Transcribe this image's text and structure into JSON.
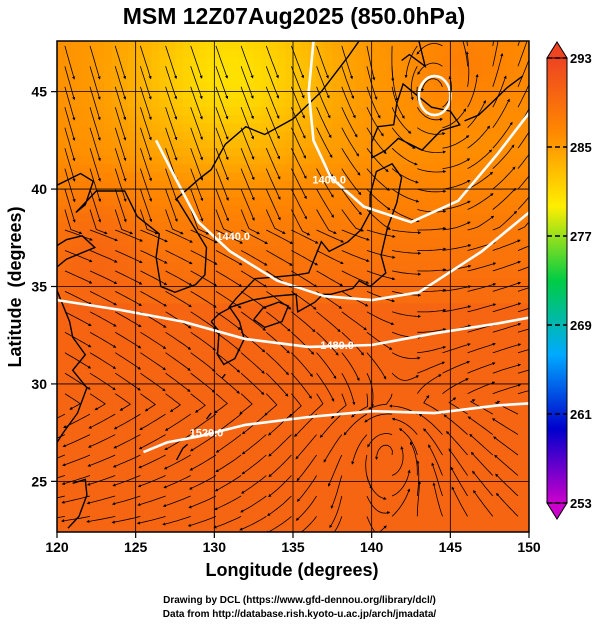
{
  "chart_data": {
    "type": "heatmap",
    "title": "MSM 12Z07Aug2025 (850.0hPa)",
    "xlabel": "Longitude (degrees)",
    "ylabel": "Latitude  (degrees)",
    "xlim": [
      120,
      150
    ],
    "ylim": [
      22.4,
      47.6
    ],
    "x_ticks": [
      120,
      125,
      130,
      135,
      140,
      145,
      150
    ],
    "y_ticks": [
      25,
      30,
      35,
      40,
      45
    ],
    "colorbar": {
      "min": 253,
      "max": 293,
      "tick_values": [
        253,
        261,
        269,
        277,
        285,
        293
      ],
      "tick_labels": [
        "253",
        "261",
        "269",
        "277",
        "285",
        "293"
      ],
      "colors": [
        "#cc00cc",
        "#0000cc",
        "#00aaff",
        "#00cc44",
        "#ffee00",
        "#ff8800",
        "#ee4422"
      ]
    },
    "contours": [
      {
        "label": "1480.0",
        "label_lon": 137.8,
        "label_lat": 32.0,
        "points": [
          [
            120,
            34.3
          ],
          [
            124,
            33.8
          ],
          [
            128,
            33.2
          ],
          [
            132,
            32.3
          ],
          [
            136,
            31.9
          ],
          [
            140,
            32.0
          ],
          [
            144,
            32.6
          ],
          [
            148,
            33.1
          ],
          [
            150,
            33.4
          ]
        ]
      },
      {
        "label": "1520.0",
        "label_lon": 129.5,
        "label_lat": 27.5,
        "points": [
          [
            125.5,
            26.5
          ],
          [
            127,
            27.0
          ],
          [
            129,
            27.3
          ],
          [
            132,
            27.9
          ],
          [
            136,
            28.3
          ],
          [
            140,
            28.6
          ],
          [
            144,
            28.5
          ],
          [
            148,
            28.9
          ],
          [
            150,
            29.0
          ]
        ]
      },
      {
        "label": "1440.0",
        "label_lon": 131.2,
        "label_lat": 37.6,
        "points": [
          [
            126.3,
            42.5
          ],
          [
            127.5,
            40.6
          ],
          [
            129,
            38.3
          ],
          [
            131,
            36.8
          ],
          [
            134,
            35.3
          ],
          [
            137,
            34.5
          ],
          [
            140,
            34.3
          ],
          [
            143,
            34.7
          ],
          [
            147,
            36.8
          ],
          [
            150,
            38.8
          ]
        ]
      },
      {
        "label": "1400.0",
        "label_lon": 137.3,
        "label_lat": 40.5,
        "points": [
          [
            136.3,
            47.6
          ],
          [
            136.0,
            45.0
          ],
          [
            136.3,
            42.5
          ],
          [
            137.4,
            40.6
          ],
          [
            139.5,
            39.1
          ],
          [
            142.5,
            38.3
          ],
          [
            145.5,
            39.4
          ],
          [
            148,
            41.8
          ],
          [
            150,
            43.9
          ]
        ]
      }
    ],
    "closed_contours": [
      {
        "center_lon": 144.0,
        "center_lat": 44.8,
        "radius_lon": 1.0,
        "radius_lat": 1.0
      }
    ],
    "cyclone_center": {
      "lon": 141.0,
      "lat": 26.5
    },
    "flow_regions": [
      {
        "name": "mid-latitude westerlies",
        "lon_range": [
          120,
          150
        ],
        "lat_range": [
          34,
          40
        ],
        "u": 1.0,
        "v": -0.15
      },
      {
        "name": "subtropical easterlies",
        "lon_range": [
          120,
          150
        ],
        "lat_range": [
          22.4,
          28
        ],
        "u": -1.0,
        "v": 0.0
      }
    ]
  },
  "credits": {
    "line1": "Drawing by DCL (https://www.gfd-dennou.org/library/dcl/)",
    "line2": "Data from http://database.rish.kyoto-u.ac.jp/arch/jmadata/"
  },
  "colors": {
    "background": "#ffffff",
    "contour": "#ffffff",
    "streamline": "#000000",
    "coastline": "#000000"
  }
}
